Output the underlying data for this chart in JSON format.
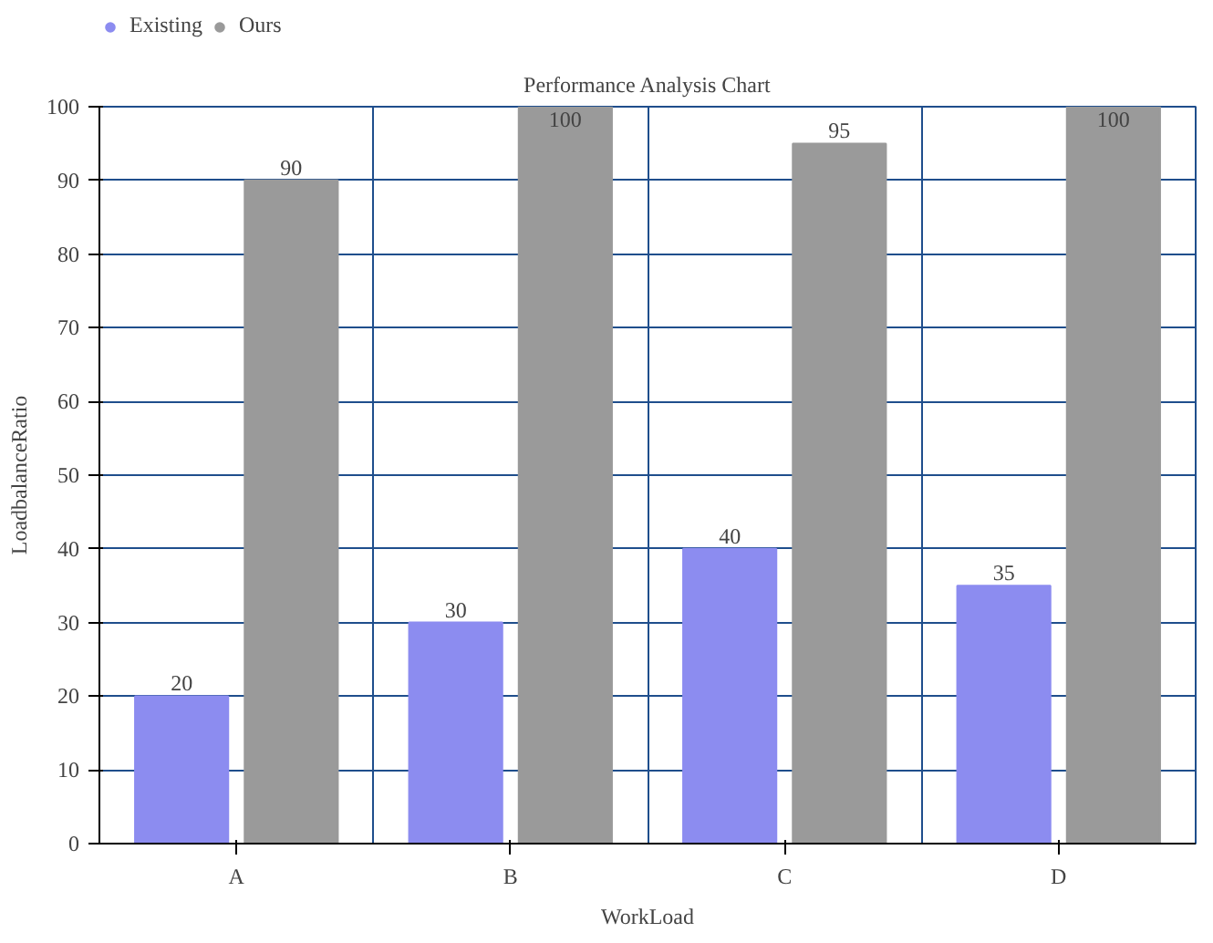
{
  "chart_data": {
    "type": "bar",
    "title": "Performance Analysis Chart",
    "xlabel": "WorkLoad",
    "ylabel": "LoadbalanceRatio",
    "categories": [
      "A",
      "B",
      "C",
      "D"
    ],
    "series": [
      {
        "name": "Existing",
        "color": "#8c8cf0",
        "values": [
          20,
          30,
          40,
          35
        ]
      },
      {
        "name": "Ours",
        "color": "#9a9a9a",
        "values": [
          90,
          100,
          95,
          100
        ]
      }
    ],
    "ylim": [
      0,
      100
    ],
    "yticks": [
      0,
      10,
      20,
      30,
      40,
      50,
      60,
      70,
      80,
      90,
      100
    ],
    "grid": true,
    "legend": "top left",
    "data_labels": true
  }
}
